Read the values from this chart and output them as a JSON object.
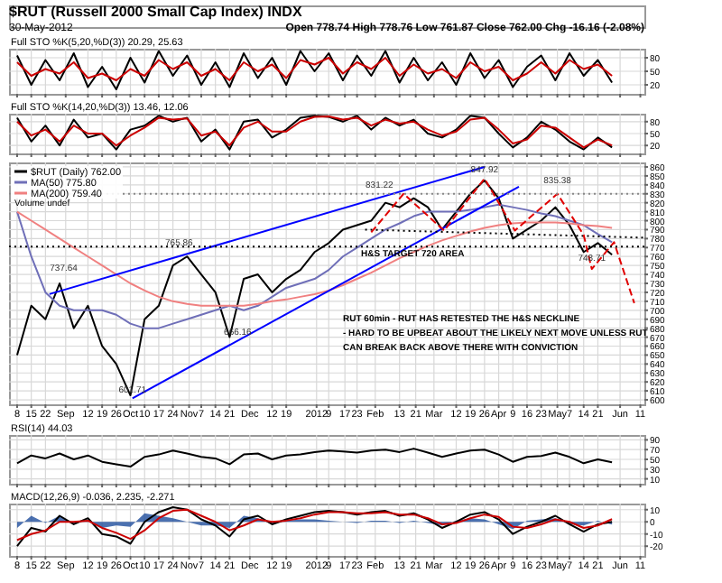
{
  "chart_data": [
    {
      "type": "other",
      "title": "$RUT (Russell 2000 Small Cap Index) INDX",
      "subtitle": "30-May-2012",
      "annotations": [
        "Open 778.74 High 778.76 Low 761.87 Close 762.00 Chg -16.16 (-2.08%)"
      ]
    },
    {
      "type": "line",
      "title": "Full STO %K(5,20,%D(3)) 20.29, 25.63",
      "x": [
        "2011-08-08",
        "2011-08-15",
        "2011-08-22",
        "2011-08-29",
        "2011-09-05",
        "2011-09-12",
        "2011-09-19",
        "2011-09-26",
        "2011-10-03",
        "2011-10-10",
        "2011-10-17",
        "2011-10-24",
        "2011-10-31",
        "2011-11-07",
        "2011-11-14",
        "2011-11-21",
        "2011-11-28",
        "2011-12-05",
        "2011-12-12",
        "2011-12-19",
        "2011-12-26",
        "2012-01-02",
        "2012-01-09",
        "2012-01-16",
        "2012-01-23",
        "2012-01-30",
        "2012-02-06",
        "2012-02-13",
        "2012-02-20",
        "2012-02-27",
        "2012-03-05",
        "2012-03-12",
        "2012-03-19",
        "2012-03-26",
        "2012-04-02",
        "2012-04-09",
        "2012-04-16",
        "2012-04-23",
        "2012-04-30",
        "2012-05-07",
        "2012-05-14",
        "2012-05-21",
        "2012-05-28"
      ],
      "series": [
        {
          "color": "#000000",
          "values": [
            85,
            20,
            75,
            30,
            90,
            15,
            60,
            10,
            80,
            25,
            95,
            40,
            85,
            20,
            70,
            15,
            90,
            35,
            80,
            20,
            95,
            50,
            90,
            30,
            85,
            40,
            95,
            25,
            80,
            30,
            70,
            20,
            90,
            35,
            75,
            15,
            60,
            85,
            30,
            90,
            40,
            75,
            25
          ]
        },
        {
          "color": "#cc0000",
          "values": [
            70,
            40,
            55,
            45,
            70,
            35,
            45,
            30,
            55,
            40,
            75,
            55,
            70,
            40,
            55,
            30,
            70,
            50,
            65,
            35,
            75,
            65,
            80,
            45,
            70,
            55,
            80,
            40,
            65,
            45,
            55,
            35,
            70,
            50,
            60,
            30,
            45,
            70,
            45,
            75,
            55,
            65,
            40
          ]
        }
      ],
      "xlim": [
        "2011-08-04",
        "2012-06-13"
      ],
      "xticks": [
        {
          "value": "2011-08-08",
          "label": null
        },
        {
          "value": "2011-08-15",
          "label": null
        },
        {
          "value": "2011-08-22",
          "label": null
        },
        {
          "value": "2011-09-01",
          "label": null
        },
        {
          "value": "2011-09-12",
          "label": null
        },
        {
          "value": "2011-09-19",
          "label": null
        },
        {
          "value": "2011-09-26",
          "label": null
        },
        {
          "value": "2011-10-03",
          "label": null
        },
        {
          "value": "2011-10-10",
          "label": null
        },
        {
          "value": "2011-10-17",
          "label": null
        },
        {
          "value": "2011-10-24",
          "label": null
        },
        {
          "value": "2011-11-01",
          "label": null
        },
        {
          "value": "2011-11-07",
          "label": null
        },
        {
          "value": "2011-11-14",
          "label": null
        },
        {
          "value": "2011-11-21",
          "label": null
        },
        {
          "value": "2011-12-01",
          "label": null
        },
        {
          "value": "2011-12-12",
          "label": null
        },
        {
          "value": "2011-12-19",
          "label": null
        },
        {
          "value": "2012-01-03",
          "label": null
        },
        {
          "value": "2012-01-09",
          "label": null
        },
        {
          "value": "2012-01-17",
          "label": null
        },
        {
          "value": "2012-01-23",
          "label": null
        },
        {
          "value": "2012-02-01",
          "label": null
        },
        {
          "value": "2012-02-13",
          "label": null
        },
        {
          "value": "2012-02-21",
          "label": null
        },
        {
          "value": "2012-03-01",
          "label": null
        },
        {
          "value": "2012-03-12",
          "label": null
        },
        {
          "value": "2012-03-19",
          "label": null
        },
        {
          "value": "2012-03-26",
          "label": null
        },
        {
          "value": "2012-04-02",
          "label": null
        },
        {
          "value": "2012-04-09",
          "label": null
        },
        {
          "value": "2012-04-16",
          "label": null
        },
        {
          "value": "2012-04-23",
          "label": null
        },
        {
          "value": "2012-05-01",
          "label": null
        },
        {
          "value": "2012-05-07",
          "label": null
        },
        {
          "value": "2012-05-14",
          "label": null
        },
        {
          "value": "2012-05-21",
          "label": null
        },
        {
          "value": "2012-06-01",
          "label": null
        },
        {
          "value": "2012-06-11",
          "label": null
        }
      ],
      "ylim": [
        0,
        100
      ],
      "yticks": [
        20,
        50,
        80
      ],
      "grid": true,
      "tick_labels": "y"
    },
    {
      "type": "line",
      "title": "Full STO %K(14,20,%D(3)) 13.46, 12.06",
      "x": [
        "2011-08-08",
        "2011-08-15",
        "2011-08-22",
        "2011-08-29",
        "2011-09-05",
        "2011-09-12",
        "2011-09-19",
        "2011-09-26",
        "2011-10-03",
        "2011-10-10",
        "2011-10-17",
        "2011-10-24",
        "2011-10-31",
        "2011-11-07",
        "2011-11-14",
        "2011-11-21",
        "2011-11-28",
        "2011-12-05",
        "2011-12-12",
        "2011-12-19",
        "2011-12-26",
        "2012-01-02",
        "2012-01-09",
        "2012-01-16",
        "2012-01-23",
        "2012-01-30",
        "2012-02-06",
        "2012-02-13",
        "2012-02-20",
        "2012-02-27",
        "2012-03-05",
        "2012-03-12",
        "2012-03-19",
        "2012-03-26",
        "2012-04-02",
        "2012-04-09",
        "2012-04-16",
        "2012-04-23",
        "2012-04-30",
        "2012-05-07",
        "2012-05-14",
        "2012-05-21",
        "2012-05-28"
      ],
      "series": [
        {
          "color": "#000000",
          "values": [
            90,
            30,
            70,
            20,
            85,
            40,
            50,
            10,
            60,
            70,
            95,
            80,
            90,
            30,
            60,
            10,
            80,
            85,
            40,
            60,
            90,
            95,
            92,
            80,
            95,
            60,
            90,
            70,
            85,
            50,
            40,
            60,
            95,
            90,
            50,
            15,
            40,
            80,
            60,
            30,
            10,
            40,
            15
          ]
        },
        {
          "color": "#cc0000",
          "values": [
            80,
            45,
            60,
            30,
            70,
            50,
            50,
            20,
            45,
            65,
            90,
            85,
            88,
            45,
            55,
            20,
            65,
            80,
            55,
            55,
            80,
            92,
            93,
            85,
            90,
            70,
            85,
            75,
            80,
            60,
            45,
            55,
            85,
            90,
            60,
            25,
            35,
            70,
            65,
            40,
            15,
            35,
            20
          ]
        }
      ],
      "xlim": [
        "2011-08-04",
        "2012-06-13"
      ],
      "xticks": [
        {
          "value": "2011-08-08",
          "label": null
        },
        {
          "value": "2011-08-15",
          "label": null
        },
        {
          "value": "2011-08-22",
          "label": null
        },
        {
          "value": "2011-09-01",
          "label": null
        },
        {
          "value": "2011-09-12",
          "label": null
        },
        {
          "value": "2011-09-19",
          "label": null
        },
        {
          "value": "2011-09-26",
          "label": null
        },
        {
          "value": "2011-10-03",
          "label": null
        },
        {
          "value": "2011-10-10",
          "label": null
        },
        {
          "value": "2011-10-17",
          "label": null
        },
        {
          "value": "2011-10-24",
          "label": null
        },
        {
          "value": "2011-11-01",
          "label": null
        },
        {
          "value": "2011-11-07",
          "label": null
        },
        {
          "value": "2011-11-14",
          "label": null
        },
        {
          "value": "2011-11-21",
          "label": null
        },
        {
          "value": "2011-12-01",
          "label": null
        },
        {
          "value": "2011-12-12",
          "label": null
        },
        {
          "value": "2011-12-19",
          "label": null
        },
        {
          "value": "2012-01-03",
          "label": null
        },
        {
          "value": "2012-01-09",
          "label": null
        },
        {
          "value": "2012-01-17",
          "label": null
        },
        {
          "value": "2012-01-23",
          "label": null
        },
        {
          "value": "2012-02-01",
          "label": null
        },
        {
          "value": "2012-02-13",
          "label": null
        },
        {
          "value": "2012-02-21",
          "label": null
        },
        {
          "value": "2012-03-01",
          "label": null
        },
        {
          "value": "2012-03-12",
          "label": null
        },
        {
          "value": "2012-03-19",
          "label": null
        },
        {
          "value": "2012-03-26",
          "label": null
        },
        {
          "value": "2012-04-02",
          "label": null
        },
        {
          "value": "2012-04-09",
          "label": null
        },
        {
          "value": "2012-04-16",
          "label": null
        },
        {
          "value": "2012-04-23",
          "label": null
        },
        {
          "value": "2012-05-01",
          "label": null
        },
        {
          "value": "2012-05-07",
          "label": null
        },
        {
          "value": "2012-05-14",
          "label": null
        },
        {
          "value": "2012-05-21",
          "label": null
        },
        {
          "value": "2012-06-01",
          "label": null
        },
        {
          "value": "2012-06-11",
          "label": null
        }
      ],
      "ylim": [
        0,
        100
      ],
      "yticks": [
        20,
        50,
        80
      ],
      "grid": true,
      "tick_labels": "y"
    },
    {
      "type": "line",
      "x": [
        "2011-08-08",
        "2011-08-15",
        "2011-08-22",
        "2011-08-29",
        "2011-09-05",
        "2011-09-12",
        "2011-09-19",
        "2011-09-26",
        "2011-10-03",
        "2011-10-10",
        "2011-10-17",
        "2011-10-24",
        "2011-10-31",
        "2011-11-07",
        "2011-11-14",
        "2011-11-21",
        "2011-11-28",
        "2011-12-05",
        "2011-12-12",
        "2011-12-19",
        "2011-12-26",
        "2012-01-02",
        "2012-01-09",
        "2012-01-16",
        "2012-01-23",
        "2012-01-30",
        "2012-02-06",
        "2012-02-13",
        "2012-02-20",
        "2012-02-27",
        "2012-03-05",
        "2012-03-12",
        "2012-03-19",
        "2012-03-26",
        "2012-04-02",
        "2012-04-09",
        "2012-04-16",
        "2012-04-23",
        "2012-04-30",
        "2012-05-07",
        "2012-05-14",
        "2012-05-21",
        "2012-05-28"
      ],
      "series": [
        {
          "name": "$RUT (Daily) 762.00",
          "color": "#000000",
          "values": [
            650,
            705,
            690,
            730,
            680,
            705,
            660,
            640,
            605,
            690,
            705,
            750,
            760,
            740,
            720,
            670,
            735,
            740,
            720,
            735,
            745,
            765,
            775,
            790,
            795,
            800,
            820,
            815,
            825,
            815,
            790,
            810,
            830,
            845,
            825,
            780,
            790,
            800,
            815,
            795,
            765,
            775,
            762
          ]
        },
        {
          "name": "MA(50) 775.80",
          "color": "#6f6fb8",
          "values": [
            810,
            760,
            720,
            705,
            700,
            700,
            700,
            695,
            685,
            680,
            680,
            685,
            690,
            695,
            700,
            705,
            700,
            705,
            715,
            725,
            730,
            735,
            745,
            760,
            770,
            780,
            790,
            797,
            805,
            810,
            810,
            810,
            812,
            815,
            818,
            815,
            812,
            808,
            805,
            800,
            795,
            785,
            776
          ]
        },
        {
          "name": "MA(200) 759.40",
          "color": "#f08080",
          "values": [
            810,
            800,
            790,
            780,
            770,
            760,
            750,
            740,
            730,
            722,
            715,
            710,
            707,
            705,
            705,
            705,
            705,
            707,
            710,
            712,
            715,
            718,
            722,
            728,
            735,
            742,
            750,
            758,
            765,
            772,
            778,
            783,
            788,
            792,
            795,
            797,
            798,
            798,
            798,
            797,
            795,
            794,
            792
          ]
        },
        {
          "color": "#0000ff",
          "x": [
            "2011-08-24",
            "2012-03-26"
          ],
          "values": [
            718,
            860
          ]
        },
        {
          "color": "#0000ff",
          "x": [
            "2011-10-04",
            "2012-04-12"
          ],
          "values": [
            601.71,
            838
          ]
        },
        {
          "color": "#000000",
          "line_style": "dotted",
          "x": [
            "2012-01-27",
            "2012-06-13"
          ],
          "values": [
            790,
            781
          ]
        },
        {
          "color": "#e00000",
          "line_style": "dashed",
          "x": [
            "2012-01-30",
            "2012-02-15",
            "2012-03-06",
            "2012-03-26",
            "2012-04-10",
            "2012-05-01",
            "2012-05-14",
            "2012-05-18",
            "2012-05-29",
            "2012-06-08"
          ],
          "values": [
            787,
            830,
            789,
            847,
            789,
            830,
            784,
            746,
            776,
            708
          ]
        }
      ],
      "annotations": [
        "Volume undef",
        "H&S TARGET 720 AREA",
        "RUT 60min - RUT HAS RETESTED THE H&S NECKLINE",
        "- HARD TO BE UPBEAT ABOUT THE LIKELY NEXT MOVE UNLESS RUT",
        "CAN BREAK BACK ABOVE THERE WITH CONVICTION",
        {
          "text": "737.64",
          "x": "2011-08-31",
          "y": 737.64
        },
        {
          "text": "765.86",
          "x": "2011-10-27",
          "y": 765.86
        },
        {
          "text": "666.16",
          "x": "2011-11-25",
          "y": 666.16
        },
        {
          "text": "601.71",
          "x": "2011-10-04",
          "y": 601.71
        },
        {
          "text": "831.22",
          "x": "2012-02-03",
          "y": 831.22
        },
        {
          "text": "847.92",
          "x": "2012-03-26",
          "y": 847.92
        },
        {
          "text": "835.38",
          "x": "2012-05-01",
          "y": 835.38
        },
        {
          "text": "748.71",
          "x": "2012-05-18",
          "y": 748.71
        }
      ],
      "ref_lines": [
        {
          "axis": "y",
          "value": 830,
          "color": "#888888",
          "line_style": "dotted"
        },
        {
          "axis": "y",
          "value": 771,
          "color": "#000000",
          "line_style": "dotted"
        }
      ],
      "legend": "top left",
      "xlim": [
        "2011-08-04",
        "2012-06-13"
      ],
      "xticks": [
        {
          "value": "2011-08-08",
          "label": "8"
        },
        {
          "value": "2011-08-15",
          "label": "15"
        },
        {
          "value": "2011-08-22",
          "label": "22"
        },
        {
          "value": "2011-09-01",
          "label": "Sep"
        },
        {
          "value": "2011-09-12",
          "label": "12"
        },
        {
          "value": "2011-09-19",
          "label": "19"
        },
        {
          "value": "2011-09-26",
          "label": "26"
        },
        {
          "value": "2011-10-03",
          "label": "Oct"
        },
        {
          "value": "2011-10-10",
          "label": "10"
        },
        {
          "value": "2011-10-17",
          "label": "17"
        },
        {
          "value": "2011-10-24",
          "label": "24"
        },
        {
          "value": "2011-11-01",
          "label": "Nov"
        },
        {
          "value": "2011-11-07",
          "label": "7"
        },
        {
          "value": "2011-11-14",
          "label": "14"
        },
        {
          "value": "2011-11-21",
          "label": "21"
        },
        {
          "value": "2011-12-01",
          "label": "Dec"
        },
        {
          "value": "2011-12-12",
          "label": "12"
        },
        {
          "value": "2011-12-19",
          "label": "19"
        },
        {
          "value": "2012-01-03",
          "label": "2012"
        },
        {
          "value": "2012-01-09",
          "label": "9"
        },
        {
          "value": "2012-01-17",
          "label": "17"
        },
        {
          "value": "2012-01-23",
          "label": "23"
        },
        {
          "value": "2012-02-01",
          "label": "Feb"
        },
        {
          "value": "2012-02-13",
          "label": "13"
        },
        {
          "value": "2012-02-21",
          "label": "21"
        },
        {
          "value": "2012-03-01",
          "label": "Mar"
        },
        {
          "value": "2012-03-12",
          "label": "12"
        },
        {
          "value": "2012-03-19",
          "label": "19"
        },
        {
          "value": "2012-03-26",
          "label": "26"
        },
        {
          "value": "2012-04-02",
          "label": "Apr"
        },
        {
          "value": "2012-04-09",
          "label": "9"
        },
        {
          "value": "2012-04-16",
          "label": "16"
        },
        {
          "value": "2012-04-23",
          "label": "23"
        },
        {
          "value": "2012-05-01",
          "label": "May"
        },
        {
          "value": "2012-05-07",
          "label": "7"
        },
        {
          "value": "2012-05-14",
          "label": "14"
        },
        {
          "value": "2012-05-21",
          "label": "21"
        },
        {
          "value": "2012-06-01",
          "label": "Jun"
        },
        {
          "value": "2012-06-11",
          "label": "11"
        }
      ],
      "ylim": [
        595,
        865
      ],
      "yticks": [
        600,
        610,
        620,
        630,
        640,
        650,
        660,
        670,
        680,
        690,
        700,
        710,
        720,
        730,
        740,
        750,
        760,
        770,
        780,
        790,
        800,
        810,
        820,
        830,
        840,
        850,
        860
      ],
      "grid": true
    },
    {
      "type": "line",
      "title": "RSI(14) 44.03",
      "x": [
        "2011-08-08",
        "2011-08-15",
        "2011-08-22",
        "2011-08-29",
        "2011-09-05",
        "2011-09-12",
        "2011-09-19",
        "2011-09-26",
        "2011-10-03",
        "2011-10-10",
        "2011-10-17",
        "2011-10-24",
        "2011-10-31",
        "2011-11-07",
        "2011-11-14",
        "2011-11-21",
        "2011-11-28",
        "2011-12-05",
        "2011-12-12",
        "2011-12-19",
        "2011-12-26",
        "2012-01-02",
        "2012-01-09",
        "2012-01-16",
        "2012-01-23",
        "2012-01-30",
        "2012-02-06",
        "2012-02-13",
        "2012-02-20",
        "2012-02-27",
        "2012-03-05",
        "2012-03-12",
        "2012-03-19",
        "2012-03-26",
        "2012-04-02",
        "2012-04-09",
        "2012-04-16",
        "2012-04-23",
        "2012-04-30",
        "2012-05-07",
        "2012-05-14",
        "2012-05-21",
        "2012-05-28"
      ],
      "series": [
        {
          "color": "#000000",
          "values": [
            42,
            58,
            52,
            62,
            50,
            58,
            45,
            40,
            35,
            55,
            60,
            68,
            62,
            55,
            52,
            40,
            60,
            62,
            50,
            58,
            60,
            65,
            68,
            66,
            64,
            68,
            70,
            65,
            72,
            64,
            55,
            62,
            68,
            70,
            60,
            45,
            55,
            57,
            64,
            55,
            42,
            50,
            44
          ]
        }
      ],
      "xlim": [
        "2011-08-04",
        "2012-06-13"
      ],
      "xticks": [
        {
          "value": "2011-08-08",
          "label": null
        },
        {
          "value": "2011-08-15",
          "label": null
        },
        {
          "value": "2011-08-22",
          "label": null
        },
        {
          "value": "2011-09-01",
          "label": null
        },
        {
          "value": "2011-09-12",
          "label": null
        },
        {
          "value": "2011-09-19",
          "label": null
        },
        {
          "value": "2011-09-26",
          "label": null
        },
        {
          "value": "2011-10-03",
          "label": null
        },
        {
          "value": "2011-10-10",
          "label": null
        },
        {
          "value": "2011-10-17",
          "label": null
        },
        {
          "value": "2011-10-24",
          "label": null
        },
        {
          "value": "2011-11-01",
          "label": null
        },
        {
          "value": "2011-11-07",
          "label": null
        },
        {
          "value": "2011-11-14",
          "label": null
        },
        {
          "value": "2011-11-21",
          "label": null
        },
        {
          "value": "2011-12-01",
          "label": null
        },
        {
          "value": "2011-12-12",
          "label": null
        },
        {
          "value": "2011-12-19",
          "label": null
        },
        {
          "value": "2012-01-03",
          "label": null
        },
        {
          "value": "2012-01-09",
          "label": null
        },
        {
          "value": "2012-01-17",
          "label": null
        },
        {
          "value": "2012-01-23",
          "label": null
        },
        {
          "value": "2012-02-01",
          "label": null
        },
        {
          "value": "2012-02-13",
          "label": null
        },
        {
          "value": "2012-02-21",
          "label": null
        },
        {
          "value": "2012-03-01",
          "label": null
        },
        {
          "value": "2012-03-12",
          "label": null
        },
        {
          "value": "2012-03-19",
          "label": null
        },
        {
          "value": "2012-03-26",
          "label": null
        },
        {
          "value": "2012-04-02",
          "label": null
        },
        {
          "value": "2012-04-09",
          "label": null
        },
        {
          "value": "2012-04-16",
          "label": null
        },
        {
          "value": "2012-04-23",
          "label": null
        },
        {
          "value": "2012-05-01",
          "label": null
        },
        {
          "value": "2012-05-07",
          "label": null
        },
        {
          "value": "2012-05-14",
          "label": null
        },
        {
          "value": "2012-05-21",
          "label": null
        },
        {
          "value": "2012-06-01",
          "label": null
        },
        {
          "value": "2012-06-11",
          "label": null
        }
      ],
      "ylim": [
        0,
        100
      ],
      "yticks": [
        10,
        30,
        50,
        70,
        90
      ],
      "grid": true,
      "tick_labels": "y"
    },
    {
      "type": "line",
      "title": "MACD(12,26,9) -0.036, 2.235, -2.271",
      "x": [
        "2011-08-08",
        "2011-08-15",
        "2011-08-22",
        "2011-08-29",
        "2011-09-05",
        "2011-09-12",
        "2011-09-19",
        "2011-09-26",
        "2011-10-03",
        "2011-10-10",
        "2011-10-17",
        "2011-10-24",
        "2011-10-31",
        "2011-11-07",
        "2011-11-14",
        "2011-11-21",
        "2011-11-28",
        "2011-12-05",
        "2011-12-12",
        "2011-12-19",
        "2011-12-26",
        "2012-01-02",
        "2012-01-09",
        "2012-01-16",
        "2012-01-23",
        "2012-01-30",
        "2012-02-06",
        "2012-02-13",
        "2012-02-20",
        "2012-02-27",
        "2012-03-05",
        "2012-03-12",
        "2012-03-19",
        "2012-03-26",
        "2012-04-02",
        "2012-04-09",
        "2012-04-16",
        "2012-04-23",
        "2012-04-30",
        "2012-05-07",
        "2012-05-14",
        "2012-05-21",
        "2012-05-28"
      ],
      "series": [
        {
          "type": "area",
          "color": "#1f4e9c",
          "values": [
            -5,
            5,
            -1,
            5,
            -2,
            2,
            -5,
            -3,
            -4,
            7,
            5,
            3,
            0,
            -3,
            -3,
            -5,
            5,
            3,
            -2,
            1,
            2,
            2,
            1,
            0,
            -1,
            1,
            1,
            -1,
            1,
            -1,
            -3,
            1,
            3,
            2,
            -2,
            -6,
            1,
            2,
            3,
            -2,
            -3,
            1,
            -2.271
          ]
        },
        {
          "color": "#000000",
          "values": [
            -20,
            -5,
            -8,
            5,
            -2,
            3,
            -10,
            -12,
            -18,
            0,
            8,
            12,
            10,
            2,
            -3,
            -12,
            2,
            5,
            -2,
            2,
            5,
            8,
            9,
            8,
            6,
            8,
            9,
            5,
            7,
            2,
            -5,
            0,
            6,
            8,
            2,
            -10,
            -4,
            0,
            5,
            -2,
            -8,
            -2,
            -0.036
          ]
        },
        {
          "color": "#cc0000",
          "values": [
            -15,
            -10,
            -7,
            0,
            0,
            1,
            -5,
            -9,
            -14,
            -7,
            3,
            9,
            10,
            5,
            0,
            -7,
            -3,
            2,
            0,
            1,
            3,
            6,
            8,
            8,
            7,
            7,
            8,
            6,
            6,
            3,
            -2,
            -1,
            3,
            6,
            4,
            -4,
            -5,
            -2,
            2,
            0,
            -5,
            -3,
            2.235
          ]
        }
      ],
      "xlim": [
        "2011-08-04",
        "2012-06-13"
      ],
      "xticks": [
        {
          "value": "2011-08-08",
          "label": "8"
        },
        {
          "value": "2011-08-15",
          "label": "15"
        },
        {
          "value": "2011-08-22",
          "label": "22"
        },
        {
          "value": "2011-09-01",
          "label": "Sep"
        },
        {
          "value": "2011-09-12",
          "label": "12"
        },
        {
          "value": "2011-09-19",
          "label": "19"
        },
        {
          "value": "2011-09-26",
          "label": "26"
        },
        {
          "value": "2011-10-03",
          "label": "Oct"
        },
        {
          "value": "2011-10-10",
          "label": "10"
        },
        {
          "value": "2011-10-17",
          "label": "17"
        },
        {
          "value": "2011-10-24",
          "label": "24"
        },
        {
          "value": "2011-11-01",
          "label": "Nov"
        },
        {
          "value": "2011-11-07",
          "label": "7"
        },
        {
          "value": "2011-11-14",
          "label": "14"
        },
        {
          "value": "2011-11-21",
          "label": "21"
        },
        {
          "value": "2011-12-01",
          "label": "Dec"
        },
        {
          "value": "2011-12-12",
          "label": "12"
        },
        {
          "value": "2011-12-19",
          "label": "19"
        },
        {
          "value": "2012-01-03",
          "label": "2012"
        },
        {
          "value": "2012-01-09",
          "label": "9"
        },
        {
          "value": "2012-01-17",
          "label": "17"
        },
        {
          "value": "2012-01-23",
          "label": "23"
        },
        {
          "value": "2012-02-01",
          "label": "Feb"
        },
        {
          "value": "2012-02-13",
          "label": "13"
        },
        {
          "value": "2012-02-21",
          "label": "21"
        },
        {
          "value": "2012-03-01",
          "label": "Mar"
        },
        {
          "value": "2012-03-12",
          "label": "12"
        },
        {
          "value": "2012-03-19",
          "label": "19"
        },
        {
          "value": "2012-03-26",
          "label": "26"
        },
        {
          "value": "2012-04-02",
          "label": "Apr"
        },
        {
          "value": "2012-04-09",
          "label": "9"
        },
        {
          "value": "2012-04-16",
          "label": "16"
        },
        {
          "value": "2012-04-23",
          "label": "23"
        },
        {
          "value": "2012-05-01",
          "label": "May"
        },
        {
          "value": "2012-05-07",
          "label": "7"
        },
        {
          "value": "2012-05-14",
          "label": "14"
        },
        {
          "value": "2012-05-21",
          "label": "21"
        },
        {
          "value": "2012-06-01",
          "label": "Jun"
        },
        {
          "value": "2012-06-11",
          "label": "11"
        }
      ],
      "ylim": [
        -28,
        15
      ],
      "yticks": [
        -20,
        -10,
        0,
        10
      ],
      "grid": true
    }
  ]
}
